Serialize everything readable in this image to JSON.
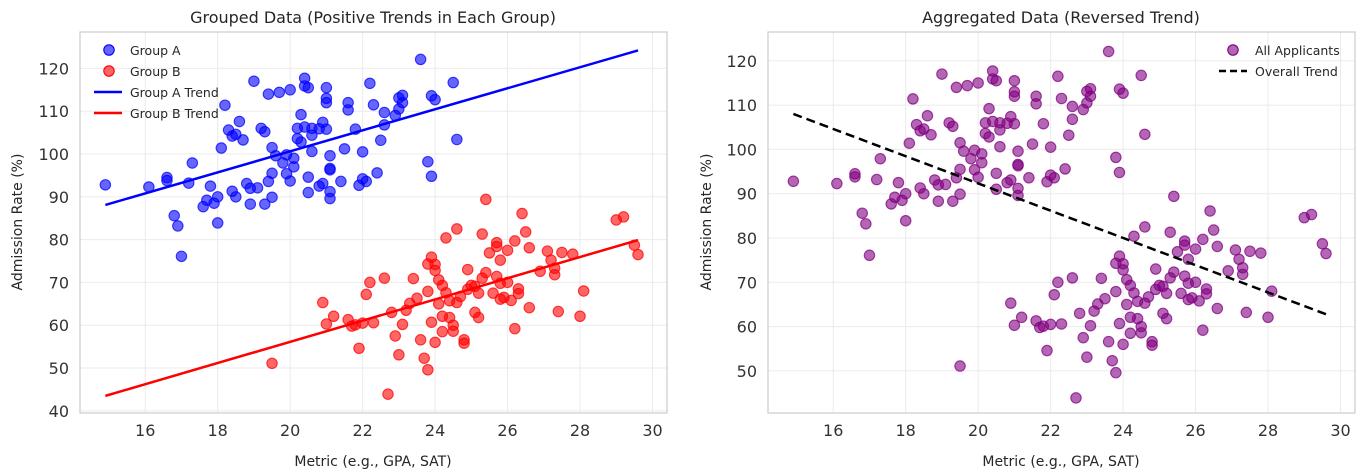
{
  "chart_data": [
    {
      "type": "scatter",
      "title": "Grouped Data (Positive Trends in Each Group)",
      "xlabel": "Metric (e.g., GPA, SAT)",
      "ylabel": "Admission Rate (%)",
      "xlim": [
        14.2,
        30.4
      ],
      "ylim": [
        39.5,
        128.5
      ],
      "xticks": [
        16,
        18,
        20,
        22,
        24,
        26,
        28,
        30
      ],
      "yticks": [
        40,
        50,
        60,
        70,
        80,
        90,
        100,
        110,
        120
      ],
      "grid": true,
      "legend": "top-left",
      "series": [
        {
          "name": "Group A",
          "kind": "points",
          "color": "#0000ff",
          "points": [
            [
              14.9,
              92.8
            ],
            [
              16.1,
              92.3
            ],
            [
              16.6,
              93.8
            ],
            [
              16.6,
              94.5
            ],
            [
              16.8,
              85.6
            ],
            [
              16.9,
              83.2
            ],
            [
              17.0,
              76.1
            ],
            [
              17.2,
              93.2
            ],
            [
              17.3,
              97.9
            ],
            [
              17.6,
              87.7
            ],
            [
              17.7,
              89.2
            ],
            [
              17.8,
              92.5
            ],
            [
              17.9,
              88.5
            ],
            [
              18.0,
              90.0
            ],
            [
              18.0,
              83.9
            ],
            [
              18.1,
              101.4
            ],
            [
              18.2,
              111.4
            ],
            [
              18.3,
              105.6
            ],
            [
              18.4,
              104.2
            ],
            [
              18.4,
              91.3
            ],
            [
              18.5,
              104.6
            ],
            [
              18.5,
              90.0
            ],
            [
              18.6,
              107.6
            ],
            [
              18.7,
              103.3
            ],
            [
              18.8,
              93.1
            ],
            [
              18.9,
              88.3
            ],
            [
              18.9,
              92.0
            ],
            [
              19.0,
              117.0
            ],
            [
              19.1,
              92.1
            ],
            [
              19.2,
              106.0
            ],
            [
              19.3,
              105.2
            ],
            [
              19.3,
              88.3
            ],
            [
              19.4,
              114.0
            ],
            [
              19.4,
              93.6
            ],
            [
              19.5,
              101.5
            ],
            [
              19.5,
              95.5
            ],
            [
              19.5,
              89.9
            ],
            [
              19.6,
              99.6
            ],
            [
              19.7,
              114.4
            ],
            [
              19.8,
              97.9
            ],
            [
              19.9,
              99.8
            ],
            [
              19.9,
              95.4
            ],
            [
              20.0,
              115.0
            ],
            [
              20.0,
              93.7
            ],
            [
              20.1,
              99.0
            ],
            [
              20.1,
              97.0
            ],
            [
              20.2,
              103.6
            ],
            [
              20.2,
              106.0
            ],
            [
              20.3,
              102.8
            ],
            [
              20.3,
              109.2
            ],
            [
              20.4,
              106.3
            ],
            [
              20.4,
              115.9
            ],
            [
              20.4,
              117.7
            ],
            [
              20.5,
              115.5
            ],
            [
              20.5,
              94.6
            ],
            [
              20.5,
              91.0
            ],
            [
              20.6,
              106.0
            ],
            [
              20.6,
              100.6
            ],
            [
              20.6,
              104.4
            ],
            [
              20.8,
              92.5
            ],
            [
              20.8,
              105.9
            ],
            [
              20.9,
              107.4
            ],
            [
              20.9,
              93.1
            ],
            [
              21.0,
              105.8
            ],
            [
              21.0,
              115.5
            ],
            [
              21.0,
              113.0
            ],
            [
              21.0,
              112.0
            ],
            [
              21.1,
              96.3
            ],
            [
              21.1,
              96.6
            ],
            [
              21.1,
              99.6
            ],
            [
              21.1,
              89.6
            ],
            [
              21.1,
              91.2
            ],
            [
              21.4,
              93.6
            ],
            [
              21.5,
              101.2
            ],
            [
              21.6,
              110.3
            ],
            [
              21.6,
              112.0
            ],
            [
              21.8,
              105.8
            ],
            [
              21.9,
              92.7
            ],
            [
              22.0,
              100.5
            ],
            [
              22.0,
              94.2
            ],
            [
              22.1,
              93.6
            ],
            [
              22.2,
              116.5
            ],
            [
              22.3,
              111.5
            ],
            [
              22.4,
              95.6
            ],
            [
              22.5,
              103.2
            ],
            [
              22.6,
              109.7
            ],
            [
              22.6,
              106.8
            ],
            [
              22.9,
              109.0
            ],
            [
              23.0,
              113.1
            ],
            [
              23.0,
              110.5
            ],
            [
              23.1,
              112.0
            ],
            [
              23.1,
              113.7
            ],
            [
              23.6,
              122.1
            ],
            [
              23.8,
              98.2
            ],
            [
              23.9,
              94.8
            ],
            [
              23.9,
              113.6
            ],
            [
              24.0,
              112.7
            ],
            [
              24.5,
              116.7
            ],
            [
              24.6,
              103.4
            ]
          ]
        },
        {
          "name": "Group B",
          "kind": "points",
          "color": "#ff0000",
          "points": [
            [
              19.5,
              51.1
            ],
            [
              20.9,
              65.3
            ],
            [
              21.0,
              60.3
            ],
            [
              21.2,
              62.1
            ],
            [
              21.6,
              61.3
            ],
            [
              21.7,
              59.8
            ],
            [
              21.8,
              60.1
            ],
            [
              21.9,
              54.6
            ],
            [
              22.0,
              60.5
            ],
            [
              22.1,
              67.2
            ],
            [
              22.2,
              70.0
            ],
            [
              22.3,
              60.6
            ],
            [
              22.6,
              71.0
            ],
            [
              22.7,
              43.9
            ],
            [
              22.8,
              63.0
            ],
            [
              22.9,
              57.5
            ],
            [
              23.0,
              53.1
            ],
            [
              23.1,
              60.2
            ],
            [
              23.2,
              63.5
            ],
            [
              23.3,
              65.1
            ],
            [
              23.4,
              70.9
            ],
            [
              23.5,
              66.3
            ],
            [
              23.6,
              56.6
            ],
            [
              23.7,
              52.3
            ],
            [
              23.8,
              49.6
            ],
            [
              23.8,
              74.3
            ],
            [
              23.8,
              67.9
            ],
            [
              23.9,
              75.9
            ],
            [
              23.9,
              60.7
            ],
            [
              24.0,
              74.2
            ],
            [
              24.0,
              72.8
            ],
            [
              24.0,
              56.0
            ],
            [
              24.1,
              70.6
            ],
            [
              24.1,
              65.0
            ],
            [
              24.2,
              62.1
            ],
            [
              24.2,
              69.3
            ],
            [
              24.2,
              58.5
            ],
            [
              24.3,
              67.6
            ],
            [
              24.3,
              80.4
            ],
            [
              24.4,
              61.8
            ],
            [
              24.4,
              65.7
            ],
            [
              24.5,
              58.6
            ],
            [
              24.5,
              60.0
            ],
            [
              24.6,
              82.5
            ],
            [
              24.6,
              65.3
            ],
            [
              24.7,
              66.7
            ],
            [
              24.8,
              55.8
            ],
            [
              24.8,
              56.6
            ],
            [
              24.9,
              68.4
            ],
            [
              24.9,
              73.0
            ],
            [
              25.0,
              69.3
            ],
            [
              25.1,
              63.0
            ],
            [
              25.1,
              69.1
            ],
            [
              25.2,
              61.8
            ],
            [
              25.2,
              67.5
            ],
            [
              25.3,
              71.0
            ],
            [
              25.3,
              81.3
            ],
            [
              25.4,
              89.4
            ],
            [
              25.4,
              72.3
            ],
            [
              25.5,
              76.9
            ],
            [
              25.6,
              67.5
            ],
            [
              25.7,
              79.3
            ],
            [
              25.7,
              78.4
            ],
            [
              25.7,
              71.4
            ],
            [
              25.8,
              75.2
            ],
            [
              25.8,
              69.8
            ],
            [
              25.8,
              66.1
            ],
            [
              25.9,
              66.5
            ],
            [
              26.0,
              77.5
            ],
            [
              26.0,
              70.0
            ],
            [
              26.1,
              65.8
            ],
            [
              26.2,
              79.7
            ],
            [
              26.2,
              59.2
            ],
            [
              26.3,
              67.4
            ],
            [
              26.3,
              68.5
            ],
            [
              26.4,
              86.1
            ],
            [
              26.5,
              81.8
            ],
            [
              26.6,
              78.1
            ],
            [
              26.6,
              64.1
            ],
            [
              26.9,
              72.6
            ],
            [
              27.1,
              77.3
            ],
            [
              27.2,
              75.2
            ],
            [
              27.3,
              73.3
            ],
            [
              27.3,
              71.8
            ],
            [
              27.4,
              63.2
            ],
            [
              27.5,
              77.0
            ],
            [
              27.8,
              76.6
            ],
            [
              28.0,
              62.1
            ],
            [
              28.1,
              68.0
            ],
            [
              29.0,
              84.6
            ],
            [
              29.2,
              85.3
            ],
            [
              29.5,
              78.7
            ],
            [
              29.6,
              76.5
            ]
          ]
        },
        {
          "name": "Group A Trend",
          "kind": "line",
          "color": "#0000ff",
          "points": [
            [
              14.9,
              88.1
            ],
            [
              29.6,
              124.2
            ]
          ]
        },
        {
          "name": "Group B Trend",
          "kind": "line",
          "color": "#ff0000",
          "points": [
            [
              14.9,
              43.5
            ],
            [
              29.6,
              79.9
            ]
          ]
        }
      ]
    },
    {
      "type": "scatter",
      "title": "Aggregated Data (Reversed Trend)",
      "xlabel": "Metric (e.g., GPA, SAT)",
      "ylabel": "Admission Rate (%)",
      "xlim": [
        14.2,
        30.4
      ],
      "ylim": [
        40.5,
        126.5
      ],
      "xticks": [
        16,
        18,
        20,
        22,
        24,
        26,
        28,
        30
      ],
      "yticks": [
        50,
        60,
        70,
        80,
        90,
        100,
        110,
        120
      ],
      "grid": true,
      "legend": "top-right",
      "series": [
        {
          "name": "All Applicants",
          "kind": "points",
          "color": "#800080",
          "source": "combined Group A and Group B points"
        },
        {
          "name": "Overall Trend",
          "kind": "dashed-line",
          "color": "#000000",
          "points": [
            [
              14.9,
              108.0
            ],
            [
              29.6,
              62.8
            ]
          ]
        }
      ]
    }
  ]
}
